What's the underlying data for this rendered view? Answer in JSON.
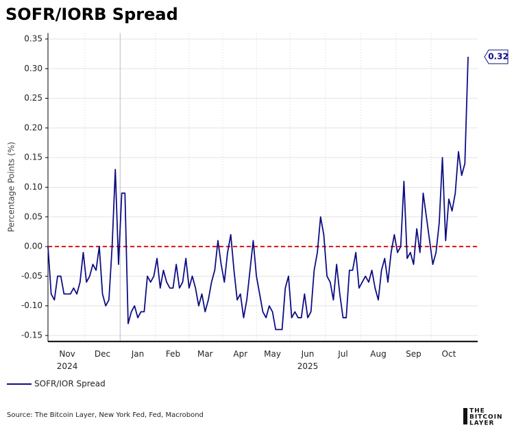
{
  "chart_data": {
    "type": "line",
    "title": "SOFR/IORB Spread",
    "ylabel": "Percentage Points (%)",
    "source": "Source: The Bitcoin Layer, New York Fed, Fed, Macrobond",
    "logo": [
      "THE",
      "BITCOIN",
      "LAYER"
    ],
    "ylim": [
      -0.16,
      0.36
    ],
    "yticks": [
      -0.15,
      {
        "value": -0.1,
        "label": "-0.10"
      },
      -0.05,
      {
        "value": 0,
        "label": "0.00"
      },
      0.05,
      {
        "value": 0.1,
        "label": "0.10"
      },
      0.15,
      {
        "value": 0.2,
        "label": "0.20"
      },
      0.25,
      {
        "value": 0.3,
        "label": "0.30"
      },
      0.35
    ],
    "grid": true,
    "hline": 0,
    "hline_color": "#dd1111",
    "legend": "bottom-left",
    "categories": [
      null,
      null,
      null,
      null,
      null,
      null,
      "Nov\n2024",
      null,
      null,
      null,
      null,
      null,
      null,
      null,
      null,
      null,
      null,
      "Dec",
      null,
      null,
      null,
      null,
      null,
      null,
      null,
      null,
      null,
      null,
      "Jan",
      null,
      null,
      null,
      null,
      null,
      null,
      null,
      null,
      null,
      null,
      "Feb",
      null,
      null,
      null,
      null,
      null,
      null,
      null,
      null,
      null,
      "Mar",
      null,
      null,
      null,
      null,
      null,
      null,
      null,
      null,
      null,
      null,
      "Apr",
      null,
      null,
      null,
      null,
      null,
      null,
      null,
      null,
      null,
      "May",
      null,
      null,
      null,
      null,
      null,
      null,
      null,
      null,
      null,
      null,
      "Jun\n2025",
      null,
      null,
      null,
      null,
      null,
      null,
      null,
      null,
      null,
      null,
      "Jul",
      null,
      null,
      null,
      null,
      null,
      null,
      null,
      null,
      null,
      null,
      "Aug",
      null,
      null,
      null,
      null,
      null,
      null,
      null,
      null,
      null,
      null,
      "Sep",
      null,
      null,
      null,
      null,
      null,
      null,
      null,
      null,
      null,
      null,
      "Oct",
      null,
      null,
      null,
      null,
      null,
      null
    ],
    "series": [
      {
        "name": "SOFR/IOR Spread",
        "color": "#0c0c84",
        "values": [
          0.0,
          -0.08,
          -0.09,
          -0.05,
          -0.05,
          -0.08,
          -0.08,
          -0.08,
          -0.07,
          -0.08,
          -0.06,
          -0.01,
          -0.06,
          -0.05,
          -0.03,
          -0.04,
          0.0,
          -0.08,
          -0.1,
          -0.09,
          0.0,
          0.13,
          -0.03,
          0.09,
          0.09,
          -0.13,
          -0.11,
          -0.1,
          -0.12,
          -0.11,
          -0.11,
          -0.05,
          -0.06,
          -0.05,
          -0.02,
          -0.07,
          -0.04,
          -0.06,
          -0.07,
          -0.07,
          -0.03,
          -0.07,
          -0.06,
          -0.02,
          -0.07,
          -0.05,
          -0.07,
          -0.1,
          -0.08,
          -0.11,
          -0.09,
          -0.06,
          -0.04,
          0.01,
          -0.03,
          -0.06,
          -0.01,
          0.02,
          -0.04,
          -0.09,
          -0.08,
          -0.12,
          -0.09,
          -0.04,
          0.01,
          -0.05,
          -0.08,
          -0.11,
          -0.12,
          -0.1,
          -0.11,
          -0.14,
          -0.14,
          -0.14,
          -0.07,
          -0.05,
          -0.12,
          -0.11,
          -0.12,
          -0.12,
          -0.08,
          -0.12,
          -0.11,
          -0.04,
          -0.01,
          0.05,
          0.02,
          -0.05,
          -0.06,
          -0.09,
          -0.03,
          -0.08,
          -0.12,
          -0.12,
          -0.04,
          -0.04,
          -0.01,
          -0.07,
          -0.06,
          -0.05,
          -0.06,
          -0.04,
          -0.07,
          -0.09,
          -0.04,
          -0.02,
          -0.06,
          -0.01,
          0.02,
          -0.01,
          0.0,
          0.11,
          -0.02,
          -0.01,
          -0.03,
          0.03,
          -0.01,
          0.09,
          0.05,
          0.01,
          -0.03,
          -0.01,
          0.04,
          0.15,
          0.01,
          0.08,
          0.06,
          0.09,
          0.16,
          0.12,
          0.14,
          0.32
        ]
      }
    ]
  }
}
